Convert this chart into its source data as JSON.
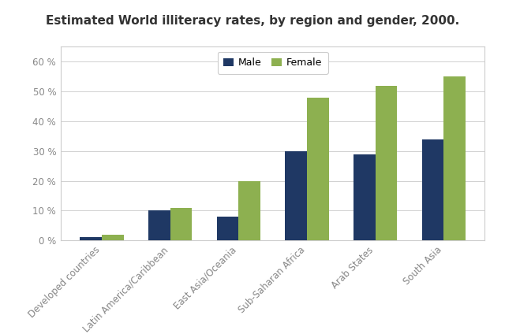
{
  "title": "Estimated World illiteracy rates, by region and gender, 2000.",
  "categories": [
    "Developed countries",
    "Latin America/Caribbean",
    "East Asia/Oceania",
    "Sub-Saharan Africa",
    "Arab States",
    "South Asia"
  ],
  "male_values": [
    1,
    10,
    8,
    30,
    29,
    34
  ],
  "female_values": [
    2,
    11,
    20,
    48,
    52,
    55
  ],
  "male_color": "#1f3864",
  "female_color": "#8db050",
  "ylim": [
    0,
    65
  ],
  "yticks": [
    0,
    10,
    20,
    30,
    40,
    50,
    60
  ],
  "ytick_labels": [
    "0 %",
    "10 %",
    "20 %",
    "30 %",
    "40 %",
    "50 %",
    "60 %"
  ],
  "legend_labels": [
    "Male",
    "Female"
  ],
  "title_fontsize": 11,
  "tick_fontsize": 8.5,
  "legend_fontsize": 9,
  "bar_width": 0.32,
  "background_color": "#ffffff",
  "plot_bg_color": "#ffffff",
  "grid_color": "#d0d0d0",
  "frame_color": "#cccccc"
}
